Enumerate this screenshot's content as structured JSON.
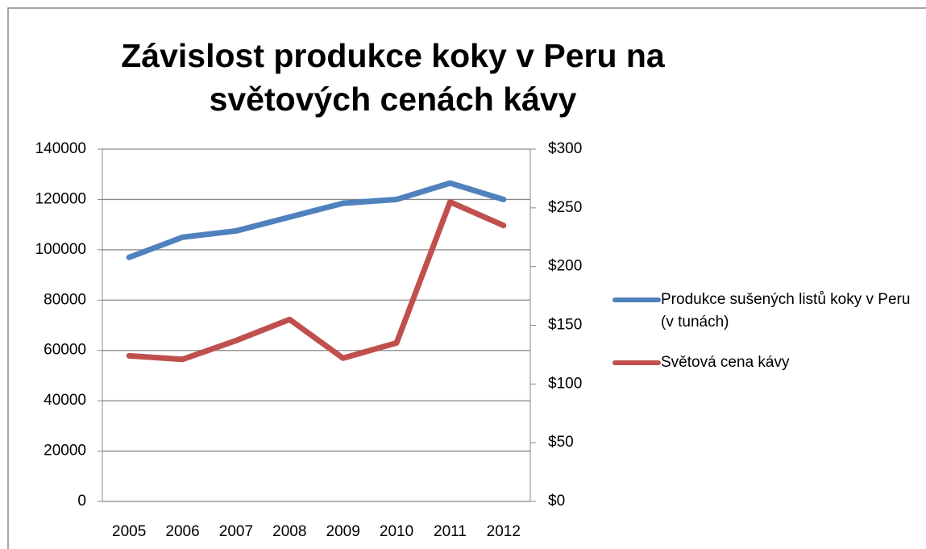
{
  "chart_data": {
    "type": "line",
    "title": "Závislost produkce koky v Peru na světových cenách kávy",
    "categories": [
      "2005",
      "2006",
      "2007",
      "2008",
      "2009",
      "2010",
      "2011",
      "2012"
    ],
    "series": [
      {
        "name": "Produkce sušených listů koky v Peru (v tunách)",
        "color": "#4f81bd",
        "values": [
          97000,
          105000,
          107500,
          113000,
          118500,
          120000,
          126500,
          120000
        ]
      },
      {
        "name": "Světová cena kávy",
        "color": "#c0504d",
        "axis": "y2",
        "values": [
          124,
          121,
          137,
          155,
          122,
          135,
          255,
          235
        ]
      }
    ],
    "ylim": [
      0,
      140000
    ],
    "yticks": [
      0,
      20000,
      40000,
      60000,
      80000,
      100000,
      120000,
      140000
    ],
    "y2lim": [
      0,
      300
    ],
    "y2ticks": [
      {
        "value": 0,
        "label": "$0"
      },
      {
        "value": 50,
        "label": "$50"
      },
      {
        "value": 100,
        "label": "$100"
      },
      {
        "value": 150,
        "label": "$150"
      },
      {
        "value": 200,
        "label": "$200"
      },
      {
        "value": 250,
        "label": "$250"
      },
      {
        "value": 300,
        "label": "$300"
      }
    ],
    "grid": true,
    "legend": "right"
  }
}
